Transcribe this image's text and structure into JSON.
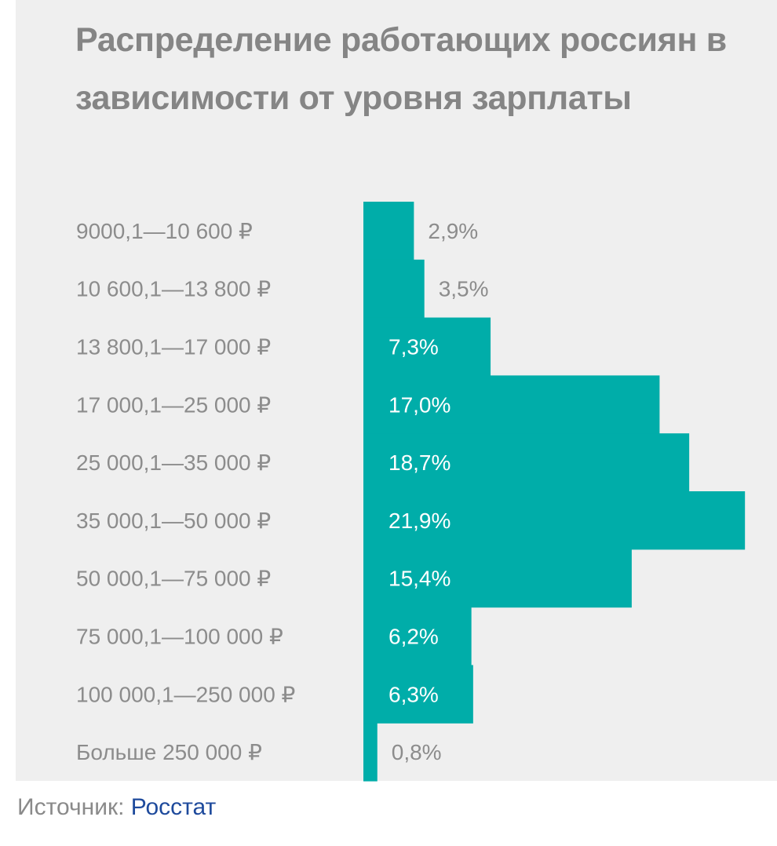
{
  "chart_data": {
    "type": "bar",
    "orientation": "horizontal",
    "title": "Распределение работающих россиян в зависимости от уровня зарплаты",
    "categories": [
      "9000,1—10 600 ₽",
      "10 600,1—13 800 ₽",
      "13 800,1—17 000 ₽",
      "17 000,1—25 000 ₽",
      "25 000,1—35 000 ₽",
      "35 000,1—50 000 ₽",
      "50 000,1—75 000 ₽",
      "75 000,1—100 000 ₽",
      "100 000,1—250 000 ₽",
      "Больше 250 000 ₽"
    ],
    "values": [
      2.9,
      3.5,
      7.3,
      17.0,
      18.7,
      21.9,
      15.4,
      6.2,
      6.3,
      0.8
    ],
    "value_labels": [
      "2,9%",
      "3,5%",
      "7,3%",
      "17,0%",
      "18,7%",
      "21,9%",
      "15,4%",
      "6,2%",
      "6,3%",
      "0,8%"
    ],
    "unit": "%",
    "grid": false,
    "legend": "none",
    "bar_color": "#00ada9"
  },
  "source": {
    "prefix": "Источник: ",
    "link_text": "Росстат"
  },
  "colors": {
    "background": "#efefef",
    "title": "#858585",
    "label": "#8c8c8c",
    "link": "#1e4a9c"
  }
}
